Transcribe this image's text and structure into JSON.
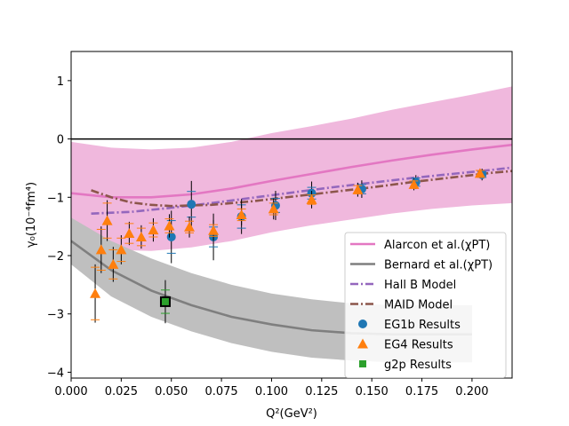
{
  "chart_data": {
    "type": "scatter",
    "xlabel": "Q²(GeV²)",
    "ylabel": "γ₀(10⁻⁴fm⁴)",
    "xlim": [
      0.0,
      0.22
    ],
    "ylim": [
      -4.1,
      1.5
    ],
    "x_ticks": [
      0.0,
      0.025,
      0.05,
      0.075,
      0.1,
      0.125,
      0.15,
      0.175,
      0.2
    ],
    "x_tick_labels": [
      "0.000",
      "0.025",
      "0.050",
      "0.075",
      "0.100",
      "0.125",
      "0.150",
      "0.175",
      "0.200"
    ],
    "y_ticks": [
      -4,
      -3,
      -2,
      -1,
      0,
      1
    ],
    "y_tick_labels": [
      "−4",
      "−3",
      "−2",
      "−1",
      "0",
      "1"
    ],
    "grid": false,
    "legend_position": "lower-right",
    "zero_line": 0,
    "colors": {
      "alarcon": "#e377c2",
      "alarcon_band": "#f0b8dd",
      "bernard": "#7f7f7f",
      "bernard_band": "#bfbfbf",
      "hallb": "#9467bd",
      "maid": "#8c564b",
      "eg1b": "#1f77b4",
      "eg4": "#ff7f0e",
      "g2p": "#2ca02c"
    },
    "bands": [
      {
        "series": "alarcon",
        "x": [
          0.0,
          0.02,
          0.04,
          0.06,
          0.08,
          0.1,
          0.12,
          0.14,
          0.16,
          0.18,
          0.2,
          0.22
        ],
        "upper": [
          -0.05,
          -0.15,
          -0.18,
          -0.15,
          -0.05,
          0.1,
          0.22,
          0.35,
          0.5,
          0.63,
          0.76,
          0.9
        ],
        "lower": [
          -1.78,
          -1.9,
          -1.92,
          -1.86,
          -1.75,
          -1.6,
          -1.48,
          -1.38,
          -1.28,
          -1.2,
          -1.14,
          -1.1
        ]
      },
      {
        "series": "bernard",
        "x": [
          0.0,
          0.02,
          0.04,
          0.06,
          0.08,
          0.1,
          0.12,
          0.14,
          0.16,
          0.18,
          0.2
        ],
        "upper": [
          -1.35,
          -1.75,
          -2.05,
          -2.3,
          -2.5,
          -2.65,
          -2.75,
          -2.82,
          -2.85,
          -2.85,
          -2.85
        ],
        "lower": [
          -2.15,
          -2.7,
          -3.05,
          -3.3,
          -3.5,
          -3.65,
          -3.75,
          -3.8,
          -3.83,
          -3.83,
          -3.83
        ]
      }
    ],
    "series": [
      {
        "name": "Alarcon et al.(χPT)",
        "kind": "line",
        "style": "solid",
        "color": "#e377c2",
        "x": [
          0.0,
          0.02,
          0.04,
          0.06,
          0.08,
          0.1,
          0.12,
          0.14,
          0.16,
          0.18,
          0.2,
          0.22
        ],
        "y": [
          -0.93,
          -1.0,
          -1.0,
          -0.95,
          -0.85,
          -0.72,
          -0.6,
          -0.48,
          -0.37,
          -0.27,
          -0.18,
          -0.1
        ]
      },
      {
        "name": "Bernard et al.(χPT)",
        "kind": "line",
        "style": "solid",
        "color": "#7f7f7f",
        "x": [
          0.0,
          0.02,
          0.04,
          0.06,
          0.08,
          0.1,
          0.12,
          0.14,
          0.16,
          0.18,
          0.2
        ],
        "y": [
          -1.75,
          -2.25,
          -2.6,
          -2.85,
          -3.05,
          -3.18,
          -3.28,
          -3.33,
          -3.35,
          -3.35,
          -3.35
        ]
      },
      {
        "name": "Hall B Model",
        "kind": "line",
        "style": "dashdot",
        "color": "#9467bd",
        "x": [
          0.01,
          0.03,
          0.05,
          0.07,
          0.09,
          0.11,
          0.13,
          0.15,
          0.17,
          0.19,
          0.21,
          0.22
        ],
        "y": [
          -1.28,
          -1.25,
          -1.18,
          -1.1,
          -1.01,
          -0.92,
          -0.83,
          -0.75,
          -0.67,
          -0.6,
          -0.53,
          -0.49
        ]
      },
      {
        "name": "MAID Model",
        "kind": "line",
        "style": "dashdot",
        "color": "#8c564b",
        "x": [
          0.01,
          0.02,
          0.03,
          0.04,
          0.05,
          0.07,
          0.09,
          0.11,
          0.13,
          0.15,
          0.17,
          0.19,
          0.21,
          0.22
        ],
        "y": [
          -0.88,
          -1.0,
          -1.09,
          -1.13,
          -1.15,
          -1.13,
          -1.07,
          -0.99,
          -0.91,
          -0.83,
          -0.74,
          -0.66,
          -0.58,
          -0.55
        ]
      },
      {
        "name": "EG1b Results",
        "kind": "points",
        "marker": "circle",
        "color": "#1f77b4",
        "points": [
          {
            "x": 0.05,
            "y": -1.68,
            "err": 0.45,
            "sys": 0.28
          },
          {
            "x": 0.06,
            "y": -1.12,
            "err": 0.4,
            "sys": 0.22
          },
          {
            "x": 0.071,
            "y": -1.68,
            "err": 0.4,
            "sys": 0.17
          },
          {
            "x": 0.085,
            "y": -1.33,
            "err": 0.3,
            "sys": 0.2
          },
          {
            "x": 0.102,
            "y": -1.14,
            "err": 0.25,
            "sys": 0.12
          },
          {
            "x": 0.12,
            "y": -0.93,
            "err": 0.2,
            "sys": 0.1
          },
          {
            "x": 0.145,
            "y": -0.86,
            "err": 0.15,
            "sys": 0.08
          },
          {
            "x": 0.172,
            "y": -0.74,
            "err": 0.12,
            "sys": 0.07
          },
          {
            "x": 0.205,
            "y": -0.61,
            "err": 0.1,
            "sys": 0.05
          }
        ]
      },
      {
        "name": "EG4 Results",
        "kind": "points",
        "marker": "triangle",
        "color": "#ff7f0e",
        "points": [
          {
            "x": 0.012,
            "y": -2.65,
            "err": 0.5,
            "sys": 0.45
          },
          {
            "x": 0.015,
            "y": -1.9,
            "err": 0.4,
            "sys": 0.35
          },
          {
            "x": 0.018,
            "y": -1.4,
            "err": 0.35,
            "sys": 0.3
          },
          {
            "x": 0.021,
            "y": -2.15,
            "err": 0.3,
            "sys": 0.25
          },
          {
            "x": 0.025,
            "y": -1.9,
            "err": 0.25,
            "sys": 0.2
          },
          {
            "x": 0.029,
            "y": -1.62,
            "err": 0.2,
            "sys": 0.17
          },
          {
            "x": 0.035,
            "y": -1.68,
            "err": 0.2,
            "sys": 0.15
          },
          {
            "x": 0.041,
            "y": -1.56,
            "err": 0.2,
            "sys": 0.12
          },
          {
            "x": 0.049,
            "y": -1.49,
            "err": 0.2,
            "sys": 0.12
          },
          {
            "x": 0.059,
            "y": -1.51,
            "err": 0.18,
            "sys": 0.1
          },
          {
            "x": 0.071,
            "y": -1.57,
            "err": 0.18,
            "sys": 0.1
          },
          {
            "x": 0.085,
            "y": -1.3,
            "err": 0.18,
            "sys": 0.1
          },
          {
            "x": 0.101,
            "y": -1.2,
            "err": 0.18,
            "sys": 0.1
          },
          {
            "x": 0.12,
            "y": -1.04,
            "err": 0.15,
            "sys": 0.08
          },
          {
            "x": 0.143,
            "y": -0.87,
            "err": 0.12,
            "sys": 0.07
          },
          {
            "x": 0.171,
            "y": -0.78,
            "err": 0.1,
            "sys": 0.06
          },
          {
            "x": 0.204,
            "y": -0.59,
            "err": 0.08,
            "sys": 0.05
          }
        ]
      },
      {
        "name": "g2p Results",
        "kind": "points",
        "marker": "square",
        "color": "#2ca02c",
        "points": [
          {
            "x": 0.047,
            "y": -2.79,
            "err": 0.37,
            "sys": 0.2
          }
        ]
      }
    ]
  }
}
